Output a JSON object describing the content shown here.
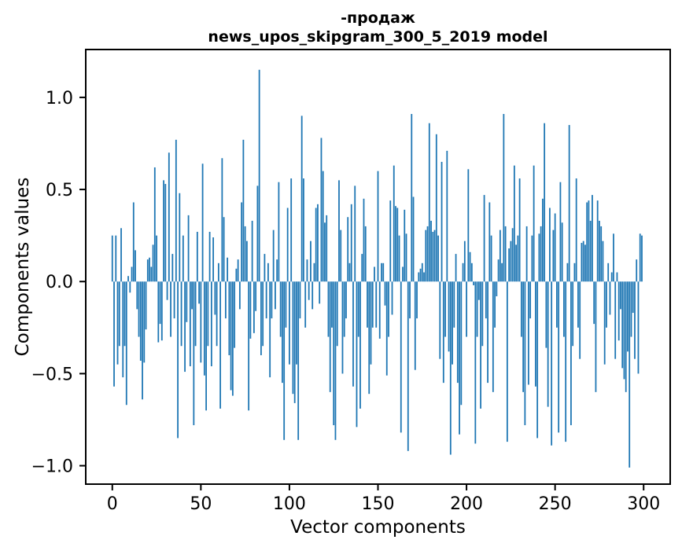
{
  "figure": {
    "background": "#ffffff",
    "text_color": "#000000",
    "spine_color": "#000000"
  },
  "chart_data": {
    "type": "bar",
    "title_line1": "-продаж",
    "title_line2": "news_upos_skipgram_300_5_2019 model",
    "xlabel": "Vector components",
    "ylabel": "Components values",
    "bar_color": "#1f77b4",
    "bar_width_units": 0.8,
    "xlim": [
      -15,
      315
    ],
    "ylim": [
      -1.1,
      1.26
    ],
    "grid": false,
    "legend": null,
    "xticks": [
      0,
      50,
      100,
      150,
      200,
      250,
      300
    ],
    "xtick_labels": [
      "0",
      "50",
      "100",
      "150",
      "200",
      "250",
      "300"
    ],
    "ytick_values": [
      1.0,
      0.5,
      0.0,
      -0.5,
      -1.0
    ],
    "ytick_labels": [
      "1.0",
      "0.5",
      "0.0",
      "−0.5",
      "−1.0"
    ],
    "n_components": 300,
    "values": [
      0.25,
      -0.57,
      0.25,
      -0.45,
      -0.35,
      0.29,
      -0.52,
      -0.35,
      -0.67,
      0.03,
      -0.06,
      0.08,
      0.43,
      0.17,
      -0.15,
      -0.3,
      -0.43,
      -0.64,
      -0.44,
      -0.26,
      0.12,
      0.13,
      0.08,
      0.2,
      0.62,
      0.25,
      -0.33,
      -0.23,
      -0.32,
      0.55,
      0.53,
      -0.1,
      0.7,
      -0.3,
      0.15,
      -0.2,
      0.77,
      -0.85,
      0.48,
      -0.35,
      0.25,
      -0.49,
      -0.22,
      0.36,
      -0.46,
      -0.15,
      -0.78,
      -0.35,
      0.27,
      -0.12,
      -0.44,
      0.64,
      -0.51,
      -0.7,
      -0.35,
      0.27,
      -0.46,
      0.24,
      -0.18,
      -0.35,
      0.1,
      -0.69,
      0.67,
      0.35,
      -0.2,
      0.13,
      -0.4,
      -0.59,
      -0.62,
      -0.36,
      0.07,
      0.12,
      -0.15,
      0.43,
      0.77,
      0.3,
      0.22,
      -0.7,
      -0.31,
      0.33,
      -0.28,
      -0.16,
      0.52,
      1.15,
      -0.4,
      -0.35,
      0.15,
      -0.2,
      0.1,
      -0.52,
      -0.2,
      0.28,
      -0.15,
      0.12,
      0.54,
      -0.3,
      -0.55,
      -0.86,
      -0.25,
      0.4,
      -0.45,
      0.56,
      -0.61,
      -0.66,
      -0.45,
      -0.86,
      -0.2,
      0.9,
      0.56,
      -0.25,
      0.12,
      -0.1,
      0.22,
      -0.15,
      0.1,
      0.4,
      0.42,
      -0.12,
      0.78,
      0.6,
      0.32,
      0.36,
      -0.3,
      -0.6,
      -0.25,
      -0.78,
      -0.86,
      -0.35,
      0.55,
      0.28,
      -0.5,
      -0.3,
      -0.2,
      0.35,
      0.1,
      0.42,
      -0.57,
      0.52,
      -0.79,
      -0.3,
      -0.69,
      0.15,
      0.45,
      0.3,
      -0.25,
      -0.61,
      -0.45,
      -0.25,
      0.08,
      -0.25,
      0.6,
      -0.31,
      0.1,
      0.1,
      -0.13,
      -0.51,
      -0.3,
      0.44,
      -0.18,
      0.63,
      0.41,
      0.4,
      0.25,
      -0.82,
      0.08,
      0.39,
      0.26,
      -0.92,
      -0.2,
      0.91,
      0.46,
      -0.48,
      -0.2,
      0.05,
      0.07,
      0.1,
      0.05,
      0.28,
      0.3,
      0.86,
      0.33,
      0.27,
      0.28,
      0.8,
      0.25,
      -0.42,
      0.65,
      -0.55,
      -0.3,
      0.71,
      -0.38,
      -0.94,
      -0.45,
      -0.25,
      0.15,
      -0.55,
      -0.83,
      -0.67,
      0.1,
      0.22,
      -0.3,
      0.61,
      0.16,
      0.1,
      -0.02,
      -0.88,
      -0.3,
      -0.1,
      -0.69,
      -0.35,
      0.47,
      -0.2,
      -0.55,
      0.43,
      0.25,
      -0.6,
      -0.25,
      -0.08,
      0.12,
      0.28,
      0.1,
      0.91,
      0.3,
      -0.87,
      0.18,
      0.22,
      0.29,
      0.63,
      0.2,
      0.25,
      0.56,
      -0.3,
      -0.6,
      -0.78,
      0.3,
      -0.56,
      -0.2,
      0.25,
      0.63,
      -0.57,
      -0.85,
      0.26,
      0.3,
      0.45,
      0.86,
      -0.36,
      -0.68,
      0.4,
      -0.89,
      0.28,
      0.37,
      -0.25,
      -0.82,
      0.54,
      0.32,
      -0.3,
      -0.87,
      0.1,
      0.85,
      -0.78,
      -0.35,
      0.1,
      0.56,
      -0.25,
      -0.42,
      0.21,
      0.22,
      0.2,
      0.43,
      0.44,
      0.33,
      0.47,
      -0.23,
      -0.6,
      0.44,
      0.33,
      0.3,
      0.22,
      -0.45,
      -0.25,
      0.1,
      -0.18,
      0.05,
      0.26,
      -0.42,
      0.05,
      -0.32,
      -0.15,
      -0.47,
      -0.53,
      -0.6,
      -0.38,
      -1.01,
      -0.3,
      -0.17,
      -0.42,
      0.12,
      -0.5,
      0.26,
      0.25
    ]
  }
}
